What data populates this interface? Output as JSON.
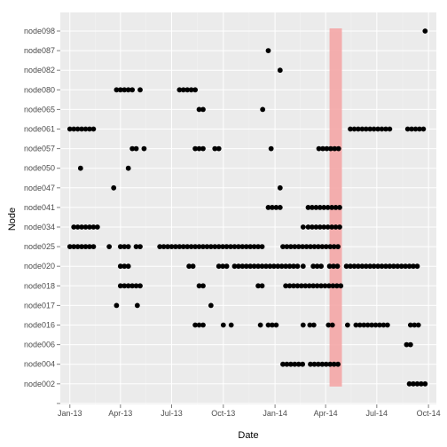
{
  "chart_data": {
    "type": "scatter",
    "title": "",
    "xlabel": "Date",
    "ylabel": "Node",
    "grid": true,
    "x_range": [
      "2012-12-15",
      "2014-10-15"
    ],
    "x_ticks": [
      {
        "date": "2013-01-01",
        "label": "Jan-13"
      },
      {
        "date": "2013-04-01",
        "label": "Apr-13"
      },
      {
        "date": "2013-07-01",
        "label": "Jul-13"
      },
      {
        "date": "2013-10-01",
        "label": "Oct-13"
      },
      {
        "date": "2014-01-01",
        "label": "Jan-14"
      },
      {
        "date": "2014-04-01",
        "label": "Apr-14"
      },
      {
        "date": "2014-07-01",
        "label": "Jul-14"
      },
      {
        "date": "2014-10-01",
        "label": "Oct-14"
      }
    ],
    "y_categories": [
      "",
      "node002",
      "node004",
      "node006",
      "node016",
      "node017",
      "node018",
      "node020",
      "node025",
      "node034",
      "node041",
      "node047",
      "node050",
      "node057",
      "node061",
      "node065",
      "node080",
      "node082",
      "node087",
      "node098"
    ],
    "highlight": {
      "x_start": "2014-04-08",
      "x_end": "2014-04-30",
      "y_from": "node002",
      "y_to": "node098",
      "color": "#f4a6a6"
    },
    "points_color": "#000000",
    "series": [
      {
        "node": "node098",
        "dates": [
          "2014-09-25"
        ]
      },
      {
        "node": "node087",
        "dates": [
          "2013-12-20"
        ]
      },
      {
        "node": "node082",
        "dates": [
          "2014-01-10"
        ]
      },
      {
        "node": "node080",
        "dates": [
          "2013-03-25",
          "2013-04-01",
          "2013-04-08",
          "2013-04-15",
          "2013-04-22",
          "2013-05-06",
          "2013-07-15",
          "2013-07-22",
          "2013-07-29",
          "2013-08-05",
          "2013-08-12"
        ]
      },
      {
        "node": "node065",
        "dates": [
          "2013-08-19",
          "2013-08-26",
          "2013-12-10"
        ]
      },
      {
        "node": "node061",
        "dates": [
          "2013-01-01",
          "2013-01-08",
          "2013-01-15",
          "2013-01-22",
          "2013-01-29",
          "2013-02-05",
          "2013-02-12",
          "2014-05-15",
          "2014-05-22",
          "2014-05-29",
          "2014-06-05",
          "2014-06-12",
          "2014-06-19",
          "2014-06-26",
          "2014-07-03",
          "2014-07-10",
          "2014-07-17",
          "2014-07-24",
          "2014-08-25",
          "2014-09-01",
          "2014-09-08",
          "2014-09-15",
          "2014-09-22"
        ]
      },
      {
        "node": "node057",
        "dates": [
          "2013-04-22",
          "2013-04-29",
          "2013-05-13",
          "2013-08-12",
          "2013-08-19",
          "2013-08-26",
          "2013-09-16",
          "2013-09-23",
          "2013-12-25",
          "2014-03-20",
          "2014-03-27",
          "2014-04-03",
          "2014-04-10",
          "2014-04-17",
          "2014-04-24"
        ]
      },
      {
        "node": "node050",
        "dates": [
          "2013-01-20",
          "2013-04-15"
        ]
      },
      {
        "node": "node047",
        "dates": [
          "2013-03-20",
          "2014-01-10"
        ]
      },
      {
        "node": "node041",
        "dates": [
          "2013-12-20",
          "2013-12-27",
          "2014-01-03",
          "2014-01-10",
          "2014-03-01",
          "2014-03-08",
          "2014-03-15",
          "2014-03-22",
          "2014-03-29",
          "2014-04-05",
          "2014-04-12",
          "2014-04-19",
          "2014-04-26"
        ]
      },
      {
        "node": "node034",
        "dates": [
          "2013-01-08",
          "2013-01-15",
          "2013-01-22",
          "2013-01-29",
          "2013-02-05",
          "2013-02-12",
          "2013-02-19",
          "2014-02-20",
          "2014-03-01",
          "2014-03-08",
          "2014-03-15",
          "2014-03-22",
          "2014-03-29",
          "2014-04-05",
          "2014-04-12",
          "2014-04-19",
          "2014-04-26"
        ]
      },
      {
        "node": "node025",
        "dates": [
          "2013-01-01",
          "2013-01-08",
          "2013-01-15",
          "2013-01-22",
          "2013-01-29",
          "2013-02-05",
          "2013-02-12",
          "2013-03-12",
          "2013-04-01",
          "2013-04-08",
          "2013-04-15",
          "2013-04-29",
          "2013-05-06",
          "2013-06-10",
          "2013-06-17",
          "2013-06-24",
          "2013-07-01",
          "2013-07-08",
          "2013-07-15",
          "2013-07-22",
          "2013-07-29",
          "2013-08-05",
          "2013-08-12",
          "2013-08-19",
          "2013-08-26",
          "2013-09-02",
          "2013-09-09",
          "2013-09-16",
          "2013-09-23",
          "2013-09-30",
          "2013-10-07",
          "2013-10-14",
          "2013-10-21",
          "2013-10-28",
          "2013-11-04",
          "2013-11-11",
          "2013-11-18",
          "2013-11-25",
          "2013-12-02",
          "2013-12-09",
          "2014-01-15",
          "2014-01-22",
          "2014-01-29",
          "2014-02-05",
          "2014-02-12",
          "2014-02-19",
          "2014-02-26",
          "2014-03-05",
          "2014-03-12",
          "2014-03-19",
          "2014-03-26",
          "2014-04-02",
          "2014-04-09",
          "2014-04-16",
          "2014-04-23"
        ]
      },
      {
        "node": "node020",
        "dates": [
          "2013-04-01",
          "2013-04-08",
          "2013-04-15",
          "2013-08-01",
          "2013-08-08",
          "2013-09-23",
          "2013-09-30",
          "2013-10-07",
          "2013-10-21",
          "2013-10-28",
          "2013-11-04",
          "2013-11-11",
          "2013-11-18",
          "2013-11-25",
          "2013-12-02",
          "2013-12-09",
          "2013-12-16",
          "2013-12-23",
          "2013-12-30",
          "2014-01-06",
          "2014-01-13",
          "2014-01-20",
          "2014-01-27",
          "2014-02-03",
          "2014-02-10",
          "2014-02-20",
          "2014-03-10",
          "2014-03-17",
          "2014-03-24",
          "2014-04-08",
          "2014-04-15",
          "2014-04-22",
          "2014-05-08",
          "2014-05-15",
          "2014-05-22",
          "2014-05-29",
          "2014-06-05",
          "2014-06-12",
          "2014-06-19",
          "2014-06-26",
          "2014-07-03",
          "2014-07-10",
          "2014-07-17",
          "2014-07-24",
          "2014-07-31",
          "2014-08-07",
          "2014-08-14",
          "2014-08-21",
          "2014-08-28",
          "2014-09-04",
          "2014-09-11"
        ]
      },
      {
        "node": "node018",
        "dates": [
          "2013-04-01",
          "2013-04-08",
          "2013-04-15",
          "2013-04-22",
          "2013-04-29",
          "2013-05-06",
          "2013-08-19",
          "2013-08-26",
          "2013-12-02",
          "2013-12-09",
          "2014-01-20",
          "2014-01-27",
          "2014-02-03",
          "2014-02-10",
          "2014-02-17",
          "2014-02-24",
          "2014-03-03",
          "2014-03-10",
          "2014-03-17",
          "2014-03-24",
          "2014-03-31",
          "2014-04-07",
          "2014-04-14",
          "2014-04-21",
          "2014-04-28"
        ]
      },
      {
        "node": "node017",
        "dates": [
          "2013-03-25",
          "2013-05-01",
          "2013-09-09"
        ]
      },
      {
        "node": "node016",
        "dates": [
          "2013-08-12",
          "2013-08-19",
          "2013-08-26",
          "2013-10-01",
          "2013-10-15",
          "2013-12-06",
          "2013-12-20",
          "2013-12-27",
          "2014-01-03",
          "2014-02-20",
          "2014-03-04",
          "2014-03-11",
          "2014-04-06",
          "2014-04-13",
          "2014-05-10",
          "2014-05-25",
          "2014-06-01",
          "2014-06-08",
          "2014-06-15",
          "2014-06-22",
          "2014-06-29",
          "2014-07-06",
          "2014-07-13",
          "2014-07-20",
          "2014-08-30",
          "2014-09-06",
          "2014-09-13"
        ]
      },
      {
        "node": "node006",
        "dates": [
          "2014-08-23",
          "2014-08-30"
        ]
      },
      {
        "node": "node004",
        "dates": [
          "2014-01-15",
          "2014-01-22",
          "2014-01-29",
          "2014-02-05",
          "2014-02-12",
          "2014-02-19",
          "2014-03-05",
          "2014-03-12",
          "2014-03-19",
          "2014-03-26",
          "2014-04-02",
          "2014-04-09",
          "2014-04-16",
          "2014-04-23"
        ]
      },
      {
        "node": "node002",
        "dates": [
          "2014-08-28",
          "2014-09-04",
          "2014-09-11",
          "2014-09-18",
          "2014-09-25"
        ]
      }
    ]
  }
}
